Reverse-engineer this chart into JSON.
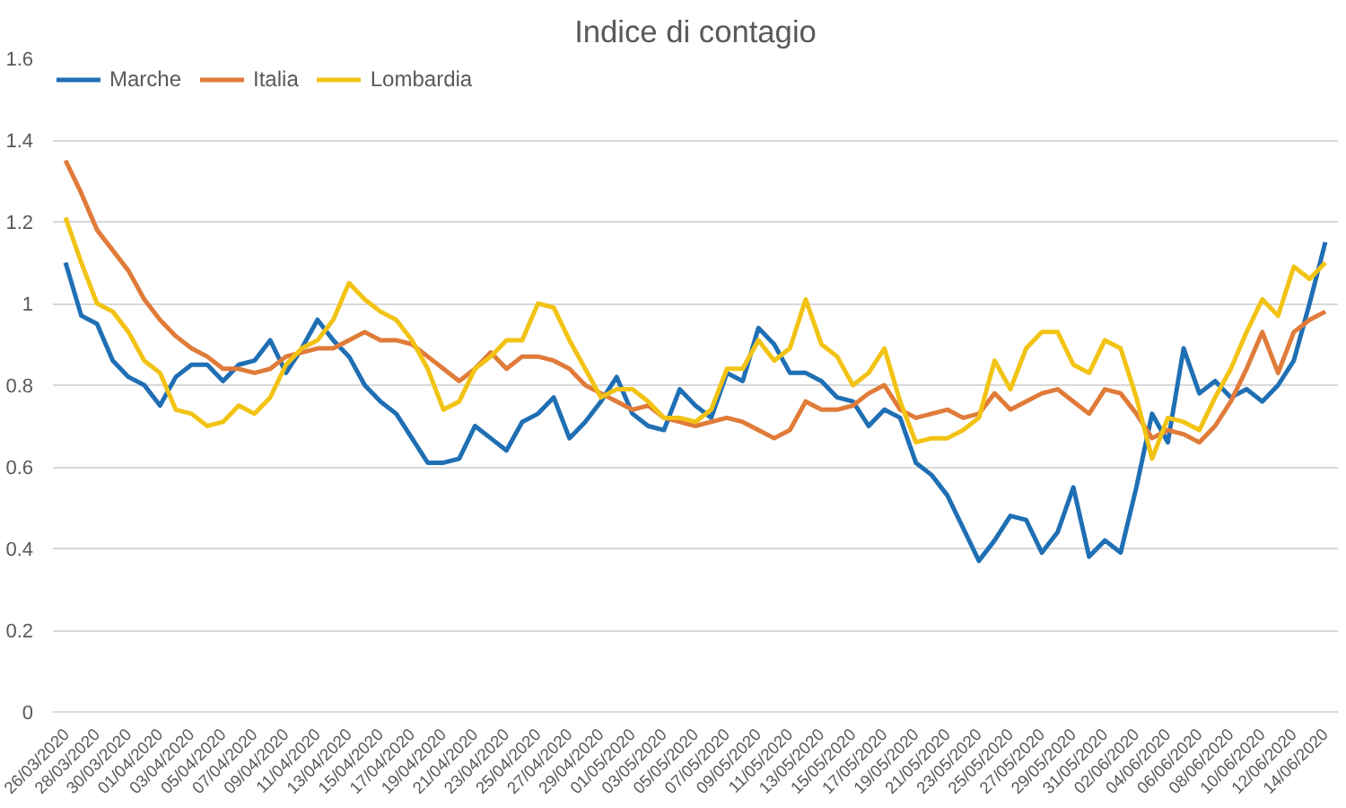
{
  "chart_data": {
    "type": "line",
    "title": "Indice di contagio",
    "categories": [
      "26/03/2020",
      null,
      "28/03/2020",
      null,
      "30/03/2020",
      null,
      "01/04/2020",
      null,
      "03/04/2020",
      null,
      "05/04/2020",
      null,
      "07/04/2020",
      null,
      "09/04/2020",
      null,
      "11/04/2020",
      null,
      "13/04/2020",
      null,
      "15/04/2020",
      null,
      "17/04/2020",
      null,
      "19/04/2020",
      null,
      "21/04/2020",
      null,
      "23/04/2020",
      null,
      "25/04/2020",
      null,
      "27/04/2020",
      null,
      "29/04/2020",
      null,
      "01/05/2020",
      null,
      "03/05/2020",
      null,
      "05/05/2020",
      null,
      "07/05/2020",
      null,
      "09/05/2020",
      null,
      "11/05/2020",
      null,
      "13/05/2020",
      null,
      "15/05/2020",
      null,
      "17/05/2020",
      null,
      "19/05/2020",
      null,
      "21/05/2020",
      null,
      "23/05/2020",
      null,
      "25/05/2020",
      null,
      "27/05/2020",
      null,
      "29/05/2020",
      null,
      "31/05/2020",
      null,
      "02/06/2020",
      null,
      "04/06/2020",
      null,
      "06/06/2020",
      null,
      "08/06/2020",
      null,
      "10/06/2020",
      null,
      "12/06/2020",
      null,
      "14/06/2020"
    ],
    "series": [
      {
        "name": "Marche",
        "color": "#1f6fb4",
        "values": [
          1.1,
          0.97,
          0.95,
          0.86,
          0.82,
          0.8,
          0.75,
          0.82,
          0.85,
          0.85,
          0.81,
          0.85,
          0.86,
          0.91,
          0.83,
          0.89,
          0.96,
          0.91,
          0.87,
          0.8,
          0.76,
          0.73,
          0.67,
          0.61,
          0.61,
          0.62,
          0.7,
          0.67,
          0.64,
          0.71,
          0.73,
          0.77,
          0.67,
          0.71,
          0.76,
          0.82,
          0.73,
          0.7,
          0.69,
          0.79,
          0.75,
          0.72,
          0.83,
          0.81,
          0.94,
          0.9,
          0.83,
          0.83,
          0.81,
          0.77,
          0.76,
          0.7,
          0.74,
          0.72,
          0.61,
          0.58,
          0.53,
          0.45,
          0.37,
          0.42,
          0.48,
          0.47,
          0.39,
          0.44,
          0.55,
          0.38,
          0.42,
          0.39,
          0.55,
          0.73,
          0.66,
          0.89,
          0.78,
          0.81,
          0.77,
          0.79,
          0.76,
          0.8,
          0.86,
          1.0,
          1.15
        ]
      },
      {
        "name": "Italia",
        "color": "#e07b39",
        "values": [
          1.35,
          1.27,
          1.18,
          1.13,
          1.08,
          1.01,
          0.96,
          0.92,
          0.89,
          0.87,
          0.84,
          0.84,
          0.83,
          0.84,
          0.87,
          0.88,
          0.89,
          0.89,
          0.91,
          0.93,
          0.91,
          0.91,
          0.9,
          0.87,
          0.84,
          0.81,
          0.84,
          0.88,
          0.84,
          0.87,
          0.87,
          0.86,
          0.84,
          0.8,
          0.78,
          0.76,
          0.74,
          0.75,
          0.72,
          0.71,
          0.7,
          0.71,
          0.72,
          0.71,
          0.69,
          0.67,
          0.69,
          0.76,
          0.74,
          0.74,
          0.75,
          0.78,
          0.8,
          0.74,
          0.72,
          0.73,
          0.74,
          0.72,
          0.73,
          0.78,
          0.74,
          0.76,
          0.78,
          0.79,
          0.76,
          0.73,
          0.79,
          0.78,
          0.73,
          0.67,
          0.69,
          0.68,
          0.66,
          0.7,
          0.76,
          0.84,
          0.93,
          0.83,
          0.93,
          0.96,
          0.98
        ]
      },
      {
        "name": "Lombardia",
        "color": "#f2c314",
        "values": [
          1.21,
          1.1,
          1.0,
          0.98,
          0.93,
          0.86,
          0.83,
          0.74,
          0.73,
          0.7,
          0.71,
          0.75,
          0.73,
          0.77,
          0.85,
          0.89,
          0.91,
          0.96,
          1.05,
          1.01,
          0.98,
          0.96,
          0.91,
          0.84,
          0.74,
          0.76,
          0.84,
          0.87,
          0.91,
          0.91,
          1.0,
          0.99,
          0.91,
          0.84,
          0.77,
          0.79,
          0.79,
          0.76,
          0.72,
          0.72,
          0.71,
          0.74,
          0.84,
          0.84,
          0.91,
          0.86,
          0.89,
          1.01,
          0.9,
          0.87,
          0.8,
          0.83,
          0.89,
          0.76,
          0.66,
          0.67,
          0.67,
          0.69,
          0.72,
          0.86,
          0.79,
          0.89,
          0.93,
          0.93,
          0.85,
          0.83,
          0.91,
          0.89,
          0.77,
          0.62,
          0.72,
          0.71,
          0.69,
          0.77,
          0.84,
          0.93,
          1.01,
          0.97,
          1.09,
          1.06,
          1.1
        ]
      }
    ],
    "ylim": [
      0,
      1.6
    ],
    "yticks": [
      0,
      0.2,
      0.4,
      0.6,
      0.8,
      1,
      1.2,
      1.4,
      1.6
    ],
    "grid": "y",
    "legend": "top left",
    "marker": "none",
    "line_style": "solid"
  }
}
